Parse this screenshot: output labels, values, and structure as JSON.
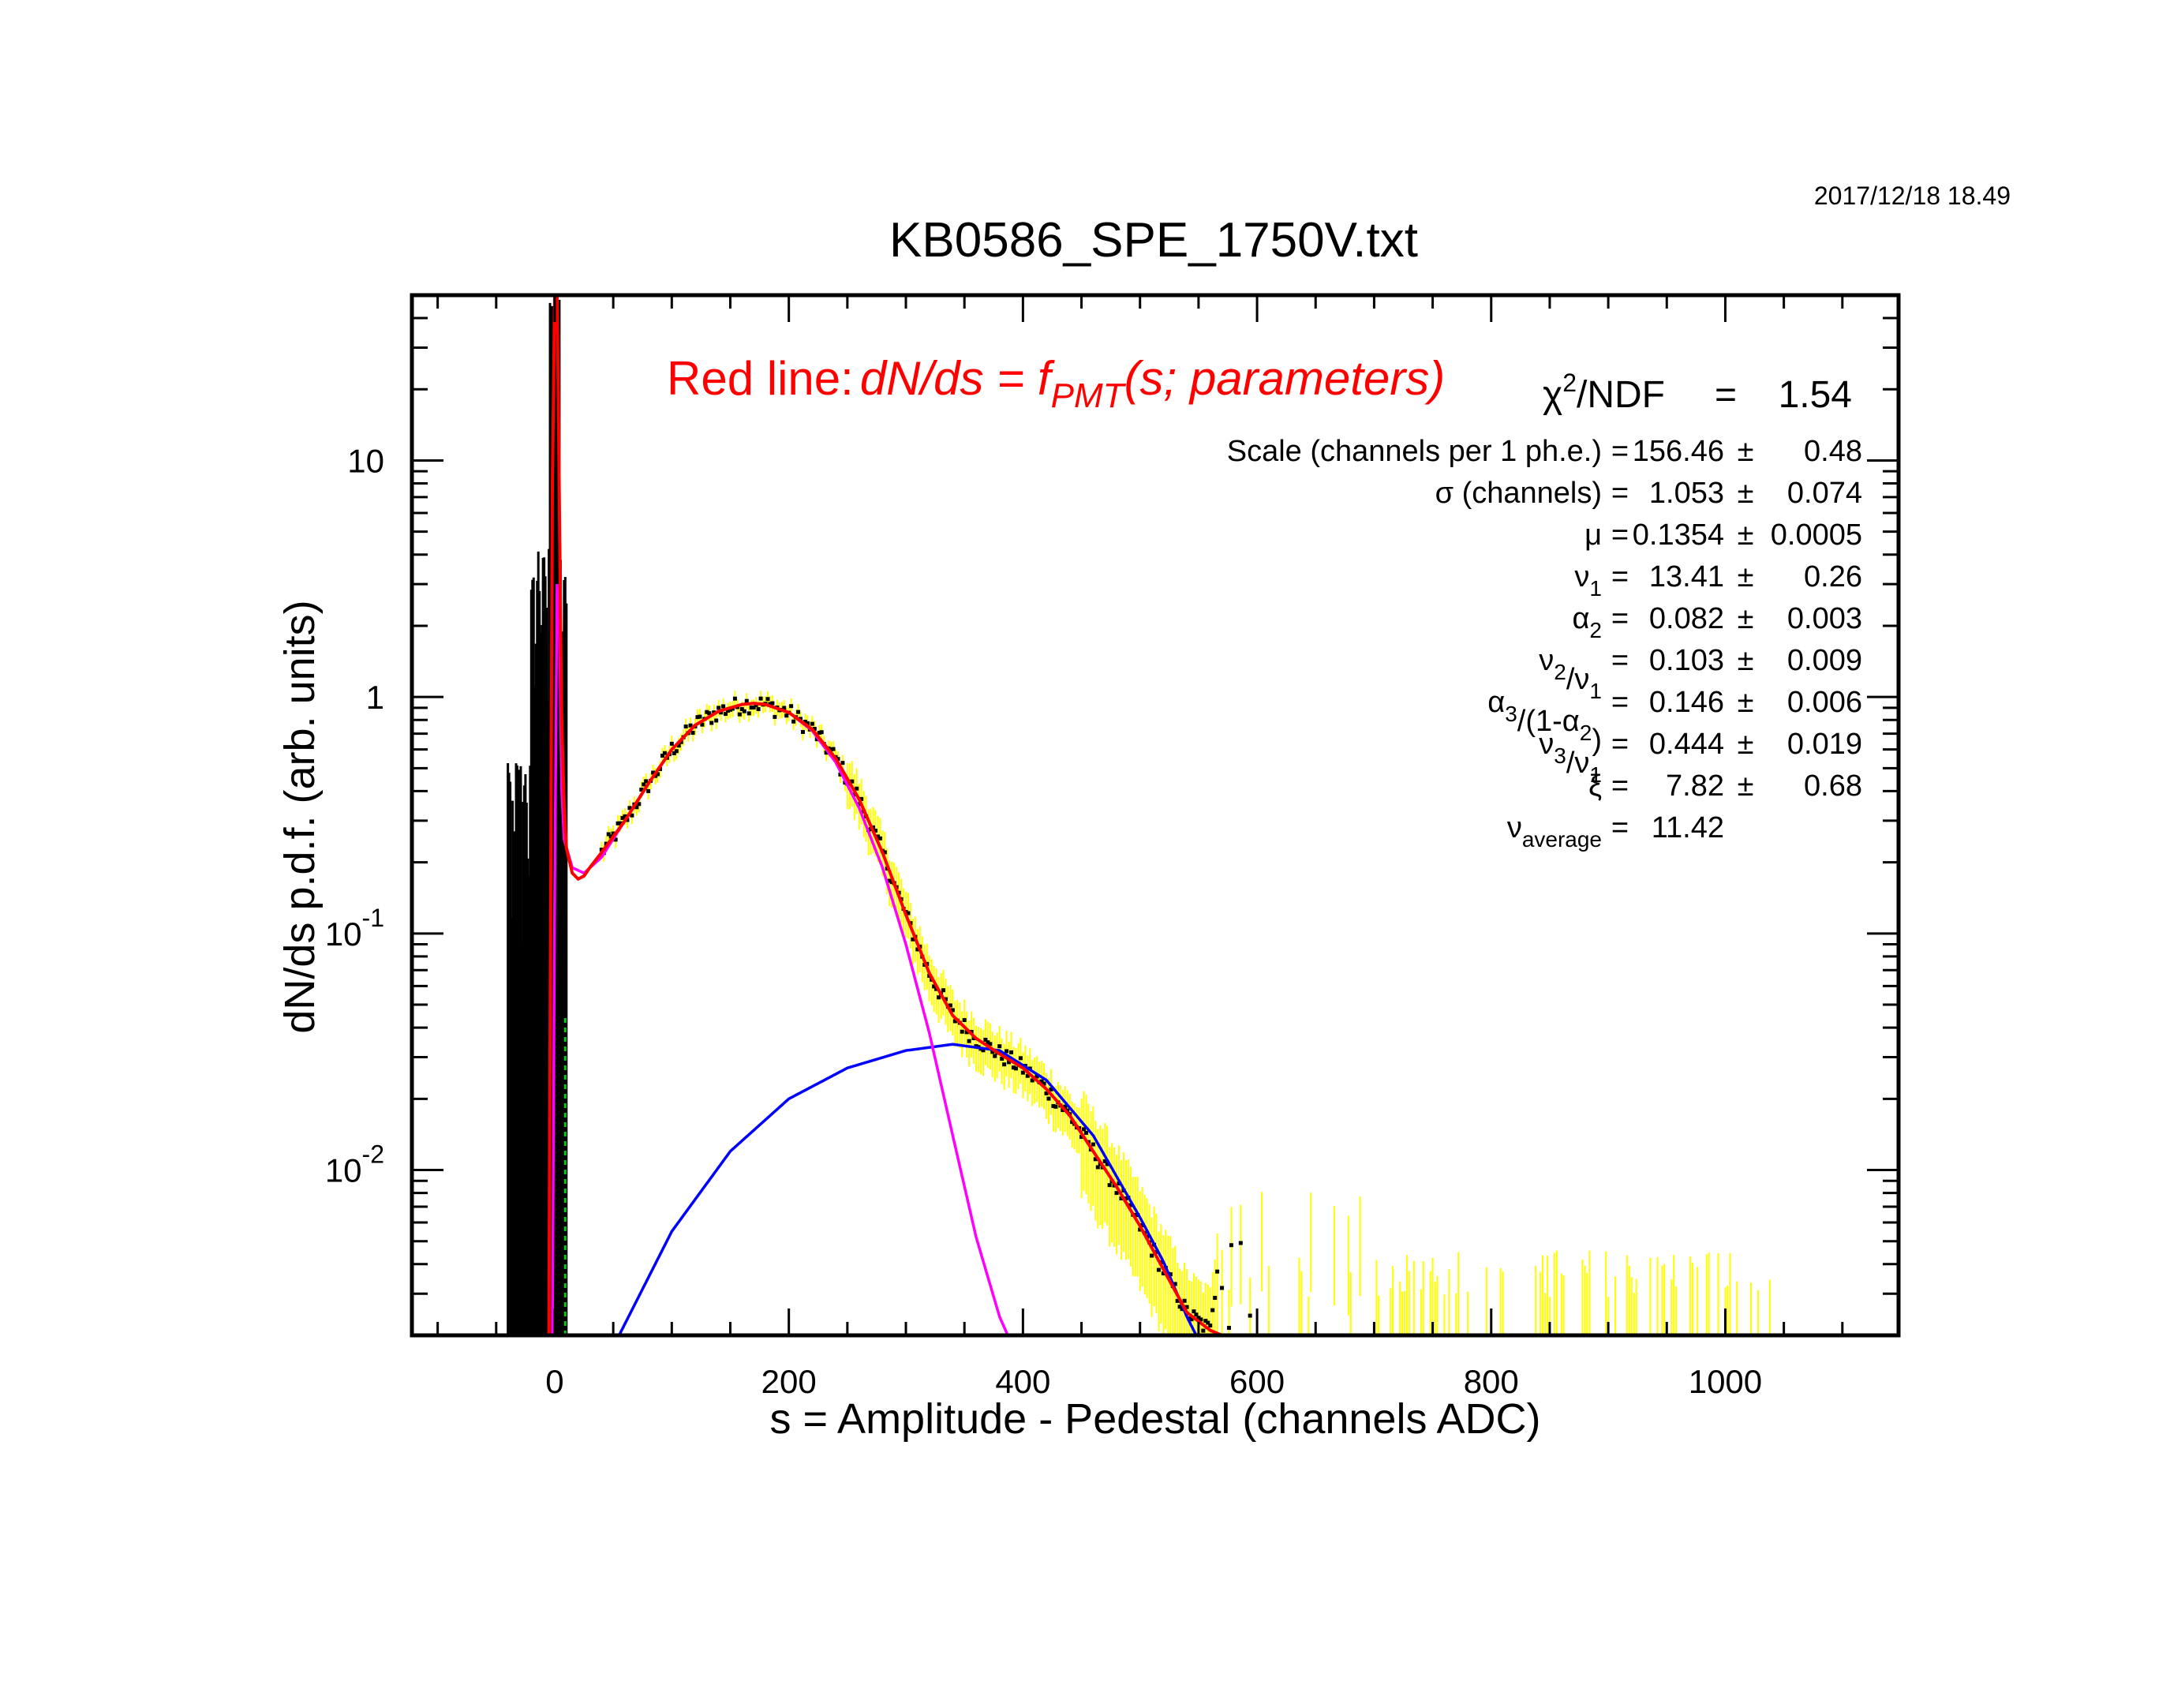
{
  "timestamp": "2017/12/18   18.49",
  "chart_data": {
    "type": "line",
    "title": "KB0586_SPE_1750V.txt",
    "xlabel": "s = Amplitude - Pedestal (channels ADC)",
    "ylabel": "dN/ds p.d.f. (arb. units)",
    "xlim": [
      -122,
      1148
    ],
    "ylim": [
      0.002,
      50
    ],
    "yscale": "log",
    "grid": false,
    "x_ticks": [
      0,
      200,
      400,
      600,
      800,
      1000
    ],
    "y_ticks": [
      {
        "value": 10,
        "base": "10",
        "exp": ""
      },
      {
        "value": 1,
        "base": "1",
        "exp": ""
      },
      {
        "value": 0.1,
        "base": "10",
        "exp": "-1"
      },
      {
        "value": 0.01,
        "base": "10",
        "exp": "-2"
      }
    ],
    "colors": {
      "total_fit": "#ff0000",
      "single_pe": "#ff00ff",
      "exponential_component": "#0000ff",
      "data_points": "#000000",
      "error_band": "#ffff00",
      "pedestal_marker": "#00cc00"
    },
    "series": [
      {
        "key": "total_fit",
        "x": [
          -5,
          -3,
          -2,
          0,
          2,
          3,
          5,
          6,
          8,
          10,
          15,
          20,
          25,
          30,
          40,
          60,
          80,
          100,
          120,
          140,
          160,
          170,
          180,
          200,
          220,
          240,
          260,
          280,
          300,
          320,
          340,
          360,
          380,
          400,
          420,
          440,
          460,
          480,
          500,
          520,
          540,
          560,
          570
        ],
        "y": [
          0.002,
          0.5,
          8,
          50,
          50,
          20,
          2,
          0.8,
          0.35,
          0.23,
          0.18,
          0.17,
          0.175,
          0.19,
          0.22,
          0.3,
          0.43,
          0.6,
          0.76,
          0.87,
          0.93,
          0.94,
          0.93,
          0.86,
          0.73,
          0.55,
          0.37,
          0.22,
          0.12,
          0.068,
          0.045,
          0.036,
          0.031,
          0.027,
          0.022,
          0.017,
          0.012,
          0.0085,
          0.0058,
          0.0038,
          0.0025,
          0.0021,
          0.002
        ]
      },
      {
        "key": "single_pe",
        "x": [
          -2,
          0,
          2,
          4,
          6,
          8,
          15,
          25,
          40,
          60,
          80,
          100,
          120,
          140,
          160,
          170,
          180,
          200,
          220,
          240,
          260,
          280,
          300,
          320,
          340,
          360,
          380,
          387
        ],
        "y": [
          0.002,
          0.15,
          3.0,
          2.0,
          0.4,
          0.25,
          0.19,
          0.18,
          0.21,
          0.3,
          0.43,
          0.6,
          0.76,
          0.87,
          0.93,
          0.94,
          0.93,
          0.86,
          0.72,
          0.53,
          0.34,
          0.19,
          0.09,
          0.038,
          0.014,
          0.0052,
          0.0024,
          0.002
        ]
      },
      {
        "key": "exponential_component",
        "x": [
          55,
          100,
          150,
          200,
          250,
          300,
          340,
          380,
          420,
          460,
          500,
          520,
          540,
          548
        ],
        "y": [
          0.002,
          0.0055,
          0.012,
          0.02,
          0.027,
          0.032,
          0.034,
          0.032,
          0.024,
          0.014,
          0.0063,
          0.0041,
          0.0024,
          0.002
        ]
      }
    ],
    "fit_results": {
      "heading": {
        "red": "Red line:",
        "italic": "dN/ds = f",
        "sub": "PMT",
        "rest": "(s; parameters)"
      },
      "chi2": {
        "sym": "χ",
        "sup": "2",
        "label": "/NDF",
        "eq": "=",
        "value": "1.54"
      },
      "rows": [
        {
          "segs": [
            {
              "t": "Scale (channels per 1 ph.e.)"
            }
          ],
          "eq": "=",
          "value": "156.46",
          "pm": "±",
          "err": "0.48"
        },
        {
          "segs": [
            {
              "t": "σ (channels)"
            }
          ],
          "eq": "=",
          "value": "1.053",
          "pm": "±",
          "err": "0.074"
        },
        {
          "segs": [
            {
              "t": "μ"
            }
          ],
          "eq": "=",
          "value": "0.1354",
          "pm": "±",
          "err": "0.0005"
        },
        {
          "segs": [
            {
              "t": "ν"
            },
            {
              "sub": "1"
            }
          ],
          "eq": "=",
          "value": "13.41",
          "pm": "±",
          "err": "0.26"
        },
        {
          "segs": [
            {
              "t": "α"
            },
            {
              "sub": "2"
            }
          ],
          "eq": "=",
          "value": "0.082",
          "pm": "±",
          "err": "0.003"
        },
        {
          "segs": [
            {
              "t": "ν"
            },
            {
              "sub": "2"
            },
            {
              "t": "/ν"
            },
            {
              "sub": "1"
            }
          ],
          "eq": "=",
          "value": "0.103",
          "pm": "±",
          "err": "0.009"
        },
        {
          "segs": [
            {
              "t": "α"
            },
            {
              "sub": "3"
            },
            {
              "t": "/(1-α"
            },
            {
              "sub": "2"
            },
            {
              "t": ")"
            }
          ],
          "eq": "=",
          "value": "0.146",
          "pm": "±",
          "err": "0.006"
        },
        {
          "segs": [
            {
              "t": "ν"
            },
            {
              "sub": "3"
            },
            {
              "t": "/ν"
            },
            {
              "sub": "1"
            }
          ],
          "eq": "=",
          "value": "0.444",
          "pm": "±",
          "err": "0.019"
        },
        {
          "segs": [
            {
              "t": "ξ"
            }
          ],
          "eq": "=",
          "value": "7.82",
          "pm": "±",
          "err": "0.68"
        },
        {
          "segs": [
            {
              "t": "ν"
            },
            {
              "sub": "average"
            }
          ],
          "eq": "=",
          "value": "11.42",
          "pm": "",
          "err": ""
        }
      ]
    }
  }
}
